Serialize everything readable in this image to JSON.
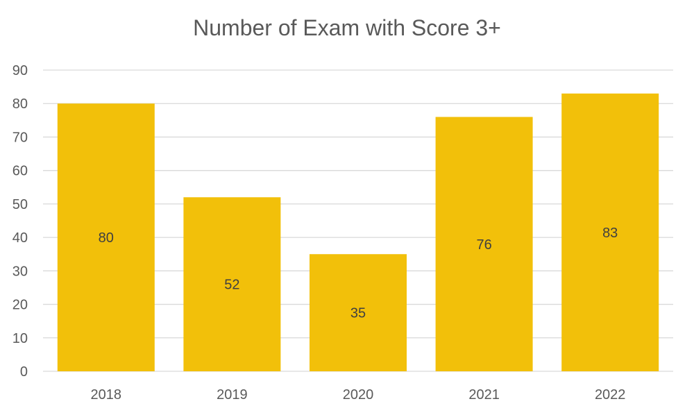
{
  "chart_data": {
    "type": "bar",
    "title": "Number of Exam with Score 3+",
    "xlabel": "",
    "ylabel": "",
    "categories": [
      "2018",
      "2019",
      "2020",
      "2021",
      "2022"
    ],
    "values": [
      80,
      52,
      35,
      76,
      83
    ],
    "data_labels": [
      "80",
      "52",
      "35",
      "76",
      "83"
    ],
    "ylim": [
      0,
      90
    ],
    "yticks": [
      "0",
      "10",
      "20",
      "30",
      "40",
      "50",
      "60",
      "70",
      "80",
      "90"
    ],
    "grid": true,
    "legend": "none",
    "bar_color": "#F2C00A",
    "grid_color": "#D9D9D9",
    "text_color": "#595959"
  }
}
